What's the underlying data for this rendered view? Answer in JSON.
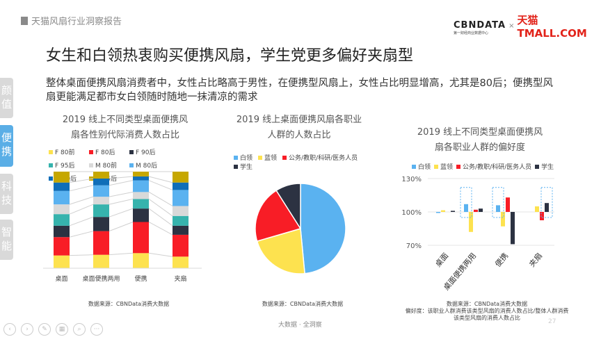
{
  "header": {
    "report_title": "天猫风扇行业洞察报告"
  },
  "logo": {
    "cbn": "CBNDATA",
    "cbn_sub": "第一财经商业数据中心",
    "x": "×",
    "tmall": "天猫TMALL.COM"
  },
  "title": "女生和白领热衷购买便携风扇，学生党更多偏好夹扇型",
  "description": "整体桌面便携风扇消费者中，女性占比略高于男性，在便携型风扇上，女性占比明显增高，尤其是80后；便携型风扇更能满足都市女白领随时随地一抹清凉的需求",
  "sidebar": [
    {
      "label": "颜值"
    },
    {
      "label": "便携"
    },
    {
      "label": "科技"
    },
    {
      "label": "智能"
    }
  ],
  "chart_data": [
    {
      "type": "bar",
      "stacked": true,
      "percent": true,
      "title_line1": "2019 线上不同类型桌面便携风",
      "title_line2": "扇各性别代际消费人数占比",
      "categories": [
        "桌面",
        "桌面便携两用",
        "便携",
        "夹扇"
      ],
      "series": [
        {
          "name": "F 80前",
          "color": "#fde24f",
          "values": [
            13.2,
            13.9,
            15.6,
            12
          ]
        },
        {
          "name": "F 80后",
          "color": "#f81d26",
          "values": [
            19,
            24.5,
            32.2,
            22.6
          ]
        },
        {
          "name": "F 90后",
          "color": "#2c3242",
          "values": [
            11.8,
            14.7,
            13.9,
            9.4
          ]
        },
        {
          "name": "F 95后",
          "color": "#36b3ad",
          "values": [
            12,
            13,
            9.9,
            10.1
          ]
        },
        {
          "name": "M 80前",
          "color": "#d9d9d9",
          "values": [
            10.1,
            7.9,
            7.2,
            10.3
          ]
        },
        {
          "name": "M 80后",
          "color": "#5ab2f0",
          "values": [
            13.9,
            11.8,
            12,
            16.6
          ]
        },
        {
          "name": "M 90后",
          "color": "#0f6eb8",
          "values": [
            8.7,
            7,
            4.1,
            7.7
          ]
        },
        {
          "name": "M 95后",
          "color": "#c6a700",
          "values": [
            11.3,
            7.2,
            5,
            11.3
          ]
        }
      ],
      "source": "数据来源：CBNData消费大数据"
    },
    {
      "type": "pie",
      "title_line1": "2019 线上桌面便携风扇各职业",
      "title_line2": "人群的人数占比",
      "categories": [
        "白领",
        "蓝领",
        "公务/教职/科研/医务人员",
        "学生"
      ],
      "values": [
        48.5,
        22,
        20.5,
        9
      ],
      "colors": [
        "#5ab2f0",
        "#fde24f",
        "#f81d26",
        "#2c3242"
      ],
      "source": "数据来源：CBNData消费大数据"
    },
    {
      "type": "bar",
      "title_line1": "2019 线上不同类型桌面便携风",
      "title_line2": "扇各职业人群的偏好度",
      "categories": [
        "桌面",
        "桌面便携两用",
        "便携",
        "夹扇"
      ],
      "series": [
        {
          "name": "白领",
          "color": "#5ab2f0",
          "values": [
            99.6,
            107,
            106,
            100
          ]
        },
        {
          "name": "蓝领",
          "color": "#fde24f",
          "values": [
            101.5,
            82,
            87,
            105
          ]
        },
        {
          "name": "公务/教职/科研/医务人员",
          "color": "#f81d26",
          "values": [
            100,
            102,
            113,
            92.5
          ]
        },
        {
          "name": "学生",
          "color": "#2c3242",
          "values": [
            101,
            103,
            71,
            108
          ]
        }
      ],
      "baseline": 100,
      "ylim": [
        70,
        130
      ],
      "yticks": [
        "130%",
        "100%",
        "70%"
      ],
      "highlight": [
        [
          1,
          0
        ],
        [
          2,
          0
        ],
        [
          3,
          3
        ]
      ],
      "source": "数据来源：CBNData消费大数据",
      "note": "偏好度：该职业人群消费该类型风扇的消费人数占比/整体人群消费该类型风扇的消费人数占比"
    }
  ],
  "footer": {
    "text": "大数据 · 全洞察",
    "page": "27"
  },
  "toolbar": [
    {
      "label": "‹"
    },
    {
      "label": "›"
    },
    {
      "label": "✎"
    },
    {
      "label": "▦"
    },
    {
      "label": "⌕"
    },
    {
      "label": "···"
    }
  ]
}
